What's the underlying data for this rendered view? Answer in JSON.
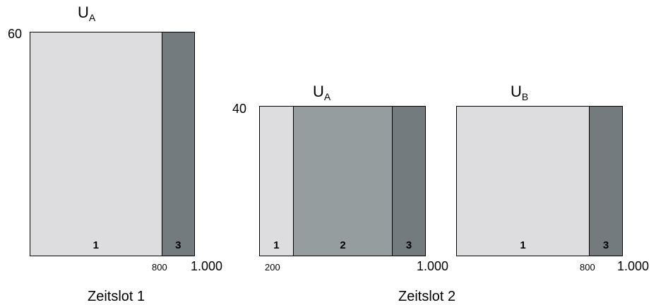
{
  "colors": {
    "segment_1": "#dddddf",
    "segment_2": "#959d9e",
    "segment_3": "#737b7e"
  },
  "panel1": {
    "title_main": "U",
    "title_sub": "A",
    "y_label": "60",
    "segments": [
      {
        "label": "1",
        "from": 0,
        "to": 800,
        "color": "segment_1"
      },
      {
        "label": "3",
        "from": 800,
        "to": 1000,
        "color": "segment_3"
      }
    ],
    "tick_small": "800",
    "tick_end": "1.000",
    "caption": "Zeitslot 1"
  },
  "panel2": {
    "title_main": "U",
    "title_sub": "A",
    "y_label": "40",
    "segments": [
      {
        "label": "1",
        "from": 0,
        "to": 200,
        "color": "segment_1"
      },
      {
        "label": "2",
        "from": 200,
        "to": 800,
        "color": "segment_2"
      },
      {
        "label": "3",
        "from": 800,
        "to": 1000,
        "color": "segment_3"
      }
    ],
    "tick_small": "200",
    "tick_end": "1.000"
  },
  "panel3": {
    "title_main": "U",
    "title_sub": "B",
    "segments": [
      {
        "label": "1",
        "from": 0,
        "to": 800,
        "color": "segment_1"
      },
      {
        "label": "3",
        "from": 800,
        "to": 1000,
        "color": "segment_3"
      }
    ],
    "tick_small": "800",
    "tick_end": "1.000"
  },
  "caption2": "Zeitslot 2"
}
